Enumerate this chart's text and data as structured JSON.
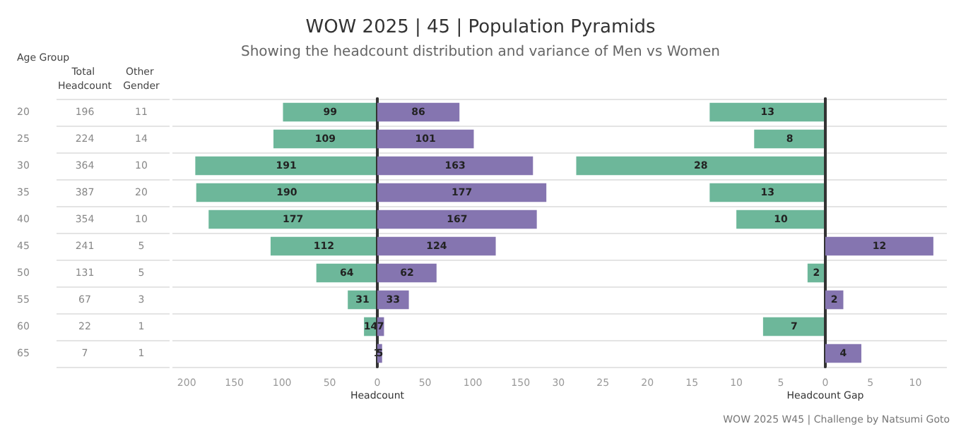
{
  "chart_data": [
    {
      "type": "heatmap",
      "ylabel": "Age Group",
      "categories": [
        "Total Headcount",
        "Other Gender"
      ],
      "y_categories": [
        "20",
        "25",
        "30",
        "35",
        "40",
        "45",
        "50",
        "55",
        "60",
        "65"
      ],
      "grid": "y",
      "data_labels": true,
      "cells": [
        [
          196,
          11
        ],
        [
          224,
          14
        ],
        [
          364,
          10
        ],
        [
          387,
          20
        ],
        [
          354,
          10
        ],
        [
          241,
          5
        ],
        [
          131,
          5
        ],
        [
          67,
          3
        ],
        [
          22,
          1
        ],
        [
          7,
          1
        ]
      ]
    },
    {
      "type": "bar",
      "orientation": "horizontal",
      "xlabel": "Headcount",
      "categories": [
        null,
        null,
        null,
        null,
        null,
        null,
        null,
        null,
        null,
        null
      ],
      "xlim": [
        215,
        0
      ],
      "xticks": [
        200,
        150,
        100,
        50,
        0
      ],
      "grid": "y",
      "tick_labels": "x",
      "data_labels": true,
      "color": "#6db79a",
      "values": [
        99,
        109,
        191,
        190,
        177,
        112,
        64,
        31,
        14,
        1
      ]
    },
    {
      "type": "bar",
      "orientation": "horizontal",
      "title": "WOW 2025 | 45 | Population Pyramids",
      "subtitle": "Showing the headcount distribution and variance of Men vs Women",
      "categories": [
        null,
        null,
        null,
        null,
        null,
        null,
        null,
        null,
        null,
        null
      ],
      "xlim": [
        0,
        185
      ],
      "xticks": [
        50,
        100,
        150
      ],
      "grid": "y",
      "tick_labels": "x",
      "data_labels": true,
      "color": "#8575b0",
      "values": [
        86,
        101,
        163,
        177,
        167,
        124,
        62,
        33,
        7,
        5
      ]
    },
    {
      "type": "bar",
      "orientation": "horizontal",
      "xlabel": "Headcount Gap",
      "categories": [
        null,
        null,
        null,
        null,
        null,
        null,
        null,
        null,
        null,
        null
      ],
      "xlim": [
        30.5,
        0
      ],
      "xticks": [
        30,
        25,
        20,
        15,
        10,
        5,
        0
      ],
      "grid": "y",
      "tick_labels": "x",
      "data_labels": true,
      "color": "#6db79a",
      "values": [
        13,
        8,
        28,
        13,
        10,
        null,
        2,
        null,
        7,
        null
      ]
    },
    {
      "type": "bar",
      "orientation": "horizontal",
      "annotations": [
        "WOW 2025 W45 | Challenge by Natsumi Goto"
      ],
      "categories": [
        null,
        null,
        null,
        null,
        null,
        null,
        null,
        null,
        null,
        null
      ],
      "xlim": [
        0,
        13.5
      ],
      "xticks": [
        5,
        10
      ],
      "grid": "y",
      "tick_labels": "x",
      "data_labels": true,
      "color": "#8575b0",
      "values": [
        null,
        null,
        null,
        null,
        null,
        12,
        null,
        2,
        null,
        4
      ]
    }
  ]
}
